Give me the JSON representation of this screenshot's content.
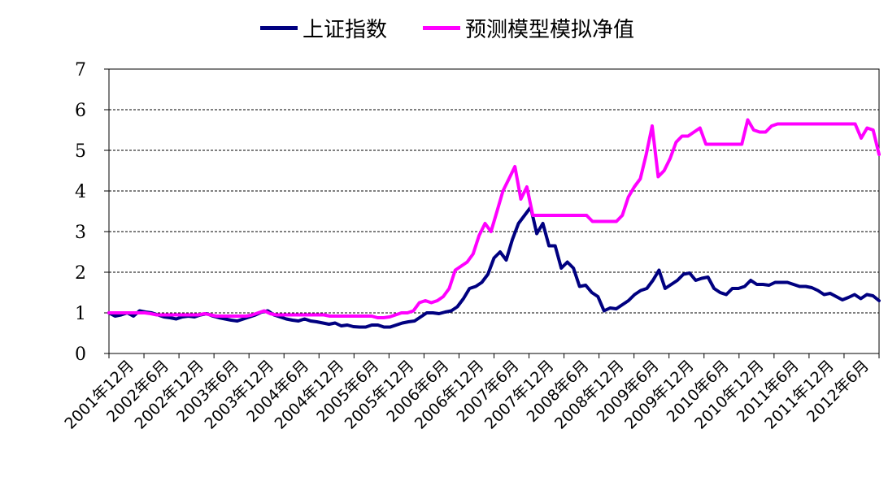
{
  "chart_data": {
    "type": "line",
    "title": "",
    "xlabel": "",
    "ylabel": "",
    "ylim": [
      0,
      7
    ],
    "yticks": [
      "0",
      "1",
      "2",
      "3",
      "4",
      "5",
      "6",
      "7"
    ],
    "grid": "horizontal-dashed",
    "legend_position": "top-center",
    "x_tick_labels": [
      "2001年12月",
      "2002年6月",
      "2002年12月",
      "2003年6月",
      "2003年12月",
      "2004年6月",
      "2004年12月",
      "2005年6月",
      "2005年12月",
      "2006年6月",
      "2006年12月",
      "2007年6月",
      "2007年12月",
      "2008年6月",
      "2008年12月",
      "2009年6月",
      "2009年12月",
      "2010年6月",
      "2010年12月",
      "2011年6月",
      "2011年12月",
      "2012年6月"
    ],
    "series": [
      {
        "name": "上证指数",
        "color": "#000080",
        "values": [
          1.0,
          0.92,
          0.95,
          1.0,
          0.92,
          1.05,
          1.02,
          1.0,
          0.95,
          0.9,
          0.88,
          0.85,
          0.9,
          0.92,
          0.9,
          0.95,
          0.98,
          0.92,
          0.88,
          0.85,
          0.82,
          0.8,
          0.85,
          0.9,
          0.95,
          1.02,
          1.05,
          0.95,
          0.9,
          0.85,
          0.82,
          0.8,
          0.85,
          0.8,
          0.78,
          0.75,
          0.72,
          0.75,
          0.68,
          0.7,
          0.66,
          0.65,
          0.65,
          0.7,
          0.7,
          0.65,
          0.65,
          0.7,
          0.75,
          0.78,
          0.8,
          0.9,
          1.0,
          1.0,
          0.98,
          1.02,
          1.05,
          1.15,
          1.35,
          1.6,
          1.65,
          1.75,
          1.95,
          2.35,
          2.5,
          2.3,
          2.8,
          3.2,
          3.4,
          3.6,
          2.95,
          3.2,
          2.65,
          2.65,
          2.1,
          2.25,
          2.1,
          1.65,
          1.68,
          1.5,
          1.4,
          1.05,
          1.12,
          1.1,
          1.2,
          1.3,
          1.45,
          1.55,
          1.6,
          1.8,
          2.05,
          1.6,
          1.7,
          1.8,
          1.95,
          1.98,
          1.8,
          1.85,
          1.88,
          1.6,
          1.5,
          1.45,
          1.6,
          1.6,
          1.65,
          1.8,
          1.7,
          1.7,
          1.68,
          1.75,
          1.75,
          1.75,
          1.7,
          1.65,
          1.65,
          1.62,
          1.55,
          1.45,
          1.48,
          1.4,
          1.32,
          1.38,
          1.45,
          1.35,
          1.45,
          1.42,
          1.3
        ]
      },
      {
        "name": "预测模型模拟净值",
        "color": "#FF00FF",
        "values": [
          1.0,
          1.0,
          1.0,
          1.0,
          1.0,
          1.0,
          1.0,
          0.98,
          0.95,
          0.95,
          0.95,
          0.95,
          0.95,
          0.95,
          0.95,
          0.95,
          0.98,
          0.95,
          0.92,
          0.92,
          0.92,
          0.92,
          0.92,
          0.92,
          0.95,
          1.0,
          1.05,
          0.98,
          0.95,
          0.95,
          0.95,
          0.95,
          0.95,
          0.95,
          0.95,
          0.95,
          0.95,
          0.92,
          0.92,
          0.92,
          0.92,
          0.92,
          0.92,
          0.92,
          0.92,
          0.88,
          0.88,
          0.9,
          0.95,
          1.0,
          1.0,
          1.05,
          1.25,
          1.3,
          1.25,
          1.3,
          1.4,
          1.6,
          2.05,
          2.15,
          2.25,
          2.45,
          2.9,
          3.2,
          3.0,
          3.5,
          4.0,
          4.3,
          4.6,
          3.8,
          4.1,
          3.4,
          3.4,
          3.4,
          3.4,
          3.4,
          3.4,
          3.4,
          3.4,
          3.4,
          3.4,
          3.25,
          3.25,
          3.25,
          3.25,
          3.25,
          3.4,
          3.85,
          4.1,
          4.3,
          4.9,
          5.6,
          4.35,
          4.5,
          4.8,
          5.2,
          5.35,
          5.35,
          5.45,
          5.55,
          5.15,
          5.15,
          5.15,
          5.15,
          5.15,
          5.15,
          5.15,
          5.75,
          5.5,
          5.45,
          5.45,
          5.6,
          5.65,
          5.65,
          5.65,
          5.65,
          5.65,
          5.65,
          5.65,
          5.65,
          5.65,
          5.65,
          5.65,
          5.65,
          5.65,
          5.65,
          5.3,
          5.55,
          5.5,
          4.9
        ]
      }
    ]
  }
}
